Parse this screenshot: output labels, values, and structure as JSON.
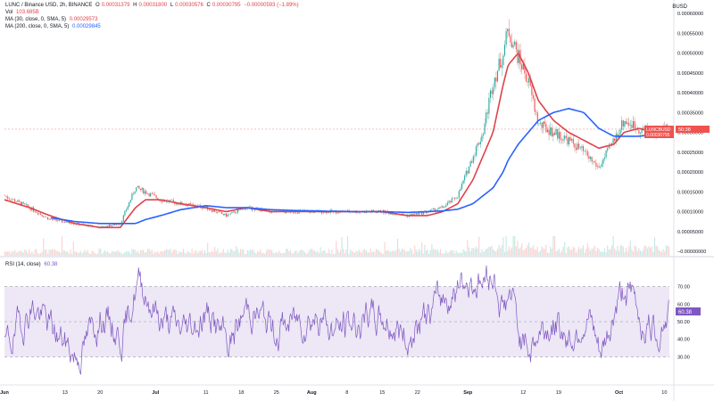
{
  "legend": {
    "title": "LUNC / Binance USD, 2h, BINANCE",
    "o_label": "O",
    "o_value": "0.00031379",
    "h_label": "H",
    "h_value": "0.00031800",
    "l_label": "L",
    "l_value": "0.00030576",
    "c_label": "C",
    "c_value": "0.00030795",
    "change": "−0.00000593 (−1.89%)",
    "vol_label": "Vol",
    "vol_value": "103.685B",
    "ma30_label": "MA (30, close, 0, SMA, 5)",
    "ma30_value": "0.00029573",
    "ma200_label": "MA (200, close, 0, SMA, 5)",
    "ma200_value": "0.00029845",
    "rsi_label": "RSI (14, close)",
    "rsi_value": "60.38"
  },
  "price_axis_unit": "BUSD",
  "last_price_tag": {
    "symbol": "LUNCBUSD",
    "price": "0.00030795",
    "countdown": "50:38"
  },
  "colors": {
    "ma30": "#e0424a",
    "ma200": "#2962ff",
    "rsi": "#7e57c2",
    "candle_up": "#26a69a",
    "candle_down": "#ef5350",
    "rsi_band": "#ede7f6"
  },
  "chart_data": [
    {
      "type": "line",
      "title": "",
      "price_ticks": [
        "0.00060000",
        "0.00055000",
        "0.00050000",
        "0.00045000",
        "0.00040000",
        "0.00035000",
        "0.00030000",
        "0.00025000",
        "0.00020000",
        "0.00015000",
        "0.00010000",
        "0.00005000",
        "−0.00000000"
      ],
      "x_ticks": [
        "Jun",
        "13",
        "20",
        "Jul",
        "11",
        "18",
        "25",
        "Aug",
        "8",
        "15",
        "22",
        "Sep",
        "12",
        "19",
        "Oct",
        "10"
      ],
      "ylim": [
        0,
        0.0006
      ],
      "x": [
        "06-01",
        "06-06",
        "06-10",
        "06-15",
        "06-20",
        "06-24",
        "06-27",
        "06-29",
        "07-02",
        "07-06",
        "07-11",
        "07-15",
        "07-19",
        "07-24",
        "07-28",
        "08-01",
        "08-05",
        "08-10",
        "08-15",
        "08-20",
        "08-24",
        "08-27",
        "08-30",
        "09-02",
        "09-04",
        "09-06",
        "09-07",
        "09-08",
        "09-09",
        "09-11",
        "09-13",
        "09-15",
        "09-18",
        "09-21",
        "09-24",
        "09-27",
        "09-30",
        "10-02",
        "10-05",
        "10-08",
        "10-11"
      ],
      "series": [
        {
          "name": "",
          "role": "price",
          "values": [
            0.00014,
            0.00011,
            8e-05,
            7e-05,
            6e-05,
            7e-05,
            0.00016,
            0.00015,
            0.00013,
            0.00012,
            0.00011,
            9e-05,
            0.00011,
            0.0001,
            0.0001,
            0.0001,
            0.0001,
            0.0001,
            0.0001,
            9e-05,
            0.0001,
            0.00011,
            0.00014,
            0.00024,
            0.0003,
            0.00043,
            0.00046,
            0.0005,
            0.00056,
            0.00049,
            0.00043,
            0.00032,
            0.0003,
            0.00028,
            0.00025,
            0.00021,
            0.00028,
            0.00033,
            0.00031,
            0.0003,
            0.00031
          ]
        },
        {
          "name": "MA (30, close, 0, SMA, 5)",
          "role": "ma30",
          "values": [
            0.00013,
            0.00011,
            9e-05,
            7e-05,
            6e-05,
            6e-05,
            0.00011,
            0.00013,
            0.00013,
            0.00012,
            0.00011,
            0.0001,
            0.00011,
            0.0001,
            0.0001,
            0.0001,
            0.0001,
            0.0001,
            0.0001,
            9e-05,
            9e-05,
            0.0001,
            0.00012,
            0.00018,
            0.00024,
            0.0003,
            0.00036,
            0.00042,
            0.00047,
            0.0005,
            0.00045,
            0.00038,
            0.00033,
            0.0003,
            0.00028,
            0.00026,
            0.00027,
            0.0003,
            0.00031,
            0.0003,
            0.0003
          ]
        },
        {
          "name": "MA (200, close, 0, SMA, 5)",
          "role": "ma200",
          "values": [
            null,
            null,
            8.5e-05,
            7.5e-05,
            7e-05,
            7e-05,
            7e-05,
            8e-05,
            9e-05,
            0.000105,
            0.000115,
            0.00011,
            0.00011,
            0.000105,
            0.000103,
            0.000102,
            0.000101,
            0.0001,
            0.0001,
            9.8e-05,
            0.0001,
            0.000102,
            0.000106,
            0.00012,
            0.00014,
            0.00016,
            0.00018,
            0.0002,
            0.00023,
            0.00027,
            0.0003,
            0.00033,
            0.00035,
            0.00036,
            0.00035,
            0.00031,
            0.00029,
            0.00029,
            0.00029,
            0.000295,
            0.0003
          ]
        }
      ]
    },
    {
      "type": "line",
      "title": "",
      "rsi_ticks": [
        "70.00",
        "60.00",
        "50.00",
        "40.00",
        "30.00"
      ],
      "ylim": [
        15,
        85
      ],
      "band": [
        30,
        70
      ],
      "x": [
        "06-01",
        "06-06",
        "06-10",
        "06-15",
        "06-20",
        "06-24",
        "06-27",
        "06-29",
        "07-02",
        "07-06",
        "07-11",
        "07-15",
        "07-19",
        "07-24",
        "07-28",
        "08-01",
        "08-05",
        "08-10",
        "08-15",
        "08-20",
        "08-24",
        "08-27",
        "08-30",
        "09-02",
        "09-04",
        "09-06",
        "09-07",
        "09-08",
        "09-09",
        "09-11",
        "09-13",
        "09-15",
        "09-18",
        "09-21",
        "09-24",
        "09-27",
        "09-30",
        "10-02",
        "10-05",
        "10-08",
        "10-11"
      ],
      "series": [
        {
          "name": "RSI (14, close)",
          "values": [
            35,
            60,
            45,
            30,
            55,
            40,
            75,
            65,
            50,
            45,
            55,
            35,
            60,
            45,
            50,
            55,
            45,
            50,
            52,
            40,
            55,
            65,
            70,
            75,
            72,
            78,
            60,
            55,
            70,
            40,
            35,
            45,
            50,
            40,
            55,
            25,
            60,
            72,
            50,
            45,
            60.38
          ]
        }
      ]
    }
  ]
}
